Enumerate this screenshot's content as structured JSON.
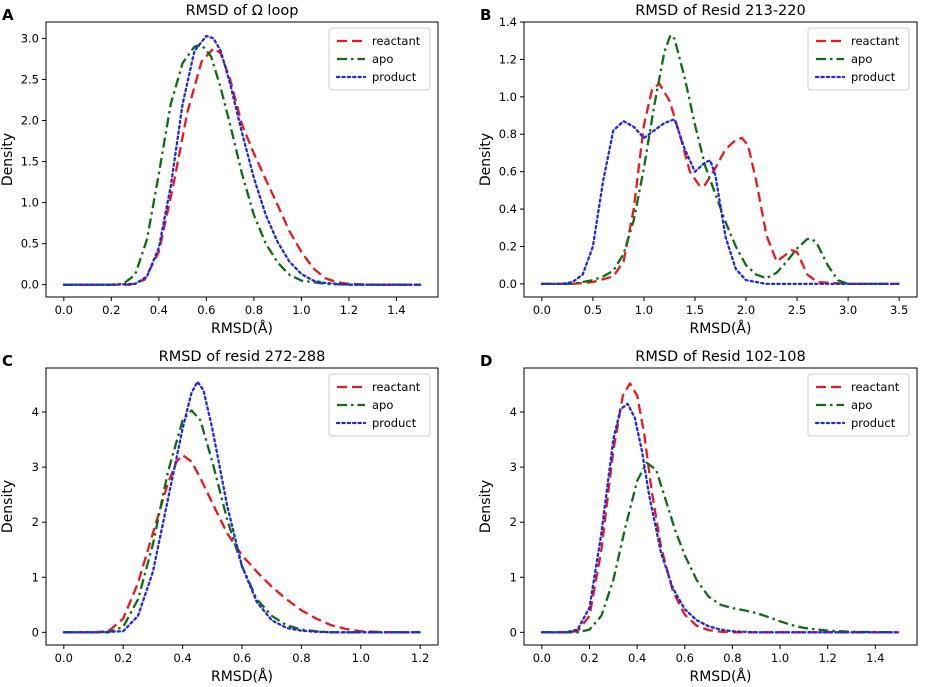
{
  "figure": {
    "colors": {
      "reactant": "#e8191f",
      "apo": "#0d6e12",
      "product": "#1f28e6"
    }
  },
  "chart_data": [
    {
      "panel": "A",
      "type": "line",
      "title": "RMSD of Ω loop",
      "xlabel": "RMSD(Å)",
      "ylabel": "Density",
      "xlim": [
        -0.075,
        1.575
      ],
      "ylim": [
        -0.15,
        3.2
      ],
      "xticks": [
        0.0,
        0.2,
        0.4,
        0.6,
        0.8,
        1.0,
        1.2,
        1.4
      ],
      "xtick_labels": [
        "0.0",
        "0.2",
        "0.4",
        "0.6",
        "0.8",
        "1.0",
        "1.2",
        "1.4"
      ],
      "yticks": [
        0.0,
        0.5,
        1.0,
        1.5,
        2.0,
        2.5,
        3.0
      ],
      "ytick_labels": [
        "0.0",
        "0.5",
        "1.0",
        "1.5",
        "2.0",
        "2.5",
        "3.0"
      ],
      "legend": {
        "position": "top-right",
        "entries": [
          "reactant",
          "apo",
          "product"
        ]
      },
      "series": [
        {
          "name": "reactant",
          "style": "dashed",
          "x": [
            0.0,
            0.1,
            0.2,
            0.28,
            0.34,
            0.4,
            0.46,
            0.52,
            0.58,
            0.63,
            0.66,
            0.7,
            0.75,
            0.8,
            0.85,
            0.9,
            0.95,
            1.0,
            1.05,
            1.1,
            1.15,
            1.2,
            1.3,
            1.5
          ],
          "y": [
            0,
            0,
            0,
            0,
            0.06,
            0.4,
            1.2,
            2.1,
            2.72,
            2.88,
            2.82,
            2.5,
            1.95,
            1.6,
            1.28,
            0.97,
            0.65,
            0.4,
            0.2,
            0.08,
            0.03,
            0.01,
            0,
            0
          ]
        },
        {
          "name": "apo",
          "style": "dashdot",
          "x": [
            0.0,
            0.1,
            0.2,
            0.25,
            0.3,
            0.35,
            0.4,
            0.45,
            0.5,
            0.55,
            0.58,
            0.62,
            0.66,
            0.7,
            0.75,
            0.8,
            0.85,
            0.9,
            0.95,
            1.0,
            1.1,
            1.2,
            1.5
          ],
          "y": [
            0,
            0,
            0,
            0.01,
            0.12,
            0.55,
            1.35,
            2.2,
            2.7,
            2.9,
            2.92,
            2.78,
            2.4,
            1.95,
            1.35,
            0.85,
            0.5,
            0.27,
            0.12,
            0.05,
            0.01,
            0,
            0
          ]
        },
        {
          "name": "product",
          "style": "dotted",
          "x": [
            0.0,
            0.1,
            0.2,
            0.3,
            0.35,
            0.4,
            0.45,
            0.5,
            0.55,
            0.6,
            0.63,
            0.66,
            0.7,
            0.75,
            0.8,
            0.85,
            0.9,
            0.95,
            1.0,
            1.05,
            1.1,
            1.2,
            1.5
          ],
          "y": [
            0,
            0,
            0,
            0.01,
            0.1,
            0.45,
            1.2,
            2.2,
            2.85,
            3.03,
            3.0,
            2.85,
            2.45,
            1.85,
            1.3,
            0.85,
            0.52,
            0.28,
            0.13,
            0.05,
            0.02,
            0,
            0
          ]
        }
      ]
    },
    {
      "panel": "B",
      "type": "line",
      "title": "RMSD of Resid 213-220",
      "xlabel": "RMSD(Å)",
      "ylabel": "Density",
      "xlim": [
        -0.175,
        3.675
      ],
      "ylim": [
        -0.07,
        1.4
      ],
      "xticks": [
        0.0,
        0.5,
        1.0,
        1.5,
        2.0,
        2.5,
        3.0,
        3.5
      ],
      "xtick_labels": [
        "0.0",
        "0.5",
        "1.0",
        "1.5",
        "2.0",
        "2.5",
        "3.0",
        "3.5"
      ],
      "yticks": [
        0.0,
        0.2,
        0.4,
        0.6,
        0.8,
        1.0,
        1.2,
        1.4
      ],
      "ytick_labels": [
        "0.0",
        "0.2",
        "0.4",
        "0.6",
        "0.8",
        "1.0",
        "1.2",
        "1.4"
      ],
      "legend": {
        "position": "top-right",
        "entries": [
          "reactant",
          "apo",
          "product"
        ]
      },
      "series": [
        {
          "name": "reactant",
          "style": "dashed",
          "x": [
            0.0,
            0.3,
            0.5,
            0.7,
            0.8,
            0.9,
            1.0,
            1.08,
            1.15,
            1.25,
            1.35,
            1.45,
            1.55,
            1.6,
            1.7,
            1.8,
            1.9,
            1.96,
            2.02,
            2.1,
            2.2,
            2.3,
            2.4,
            2.45,
            2.5,
            2.6,
            2.7,
            3.0,
            3.5
          ],
          "y": [
            0,
            0,
            0.01,
            0.04,
            0.12,
            0.4,
            0.85,
            1.04,
            1.07,
            0.98,
            0.8,
            0.6,
            0.52,
            0.53,
            0.62,
            0.72,
            0.77,
            0.78,
            0.74,
            0.55,
            0.26,
            0.12,
            0.16,
            0.18,
            0.17,
            0.05,
            0.01,
            0,
            0
          ]
        },
        {
          "name": "apo",
          "style": "dashdot",
          "x": [
            0.0,
            0.3,
            0.5,
            0.6,
            0.7,
            0.8,
            0.9,
            1.0,
            1.1,
            1.2,
            1.26,
            1.3,
            1.4,
            1.5,
            1.6,
            1.7,
            1.8,
            1.9,
            2.0,
            2.1,
            2.2,
            2.3,
            2.4,
            2.5,
            2.6,
            2.65,
            2.7,
            2.8,
            2.9,
            3.0,
            3.5
          ],
          "y": [
            0,
            0,
            0.02,
            0.04,
            0.07,
            0.16,
            0.34,
            0.62,
            0.95,
            1.24,
            1.33,
            1.31,
            1.1,
            0.85,
            0.63,
            0.48,
            0.33,
            0.2,
            0.1,
            0.05,
            0.03,
            0.06,
            0.12,
            0.19,
            0.24,
            0.24,
            0.21,
            0.1,
            0.02,
            0,
            0
          ]
        },
        {
          "name": "product",
          "style": "dotted",
          "x": [
            0.0,
            0.2,
            0.3,
            0.4,
            0.5,
            0.6,
            0.7,
            0.8,
            0.9,
            1.0,
            1.1,
            1.2,
            1.3,
            1.4,
            1.5,
            1.6,
            1.65,
            1.7,
            1.8,
            1.9,
            2.0,
            2.1,
            2.2,
            2.5,
            3.5
          ],
          "y": [
            0,
            0,
            0.01,
            0.05,
            0.2,
            0.55,
            0.82,
            0.87,
            0.84,
            0.78,
            0.82,
            0.86,
            0.88,
            0.72,
            0.6,
            0.65,
            0.66,
            0.58,
            0.25,
            0.08,
            0.02,
            0.01,
            0,
            0,
            0
          ]
        }
      ]
    },
    {
      "panel": "C",
      "type": "line",
      "title": "RMSD of resid 272-288",
      "xlabel": "RMSD(Å)",
      "ylabel": "Density",
      "xlim": [
        -0.06,
        1.26
      ],
      "ylim": [
        -0.23,
        4.8
      ],
      "xticks": [
        0.0,
        0.2,
        0.4,
        0.6,
        0.8,
        1.0,
        1.2
      ],
      "xtick_labels": [
        "0.0",
        "0.2",
        "0.4",
        "0.6",
        "0.8",
        "1.0",
        "1.2"
      ],
      "yticks": [
        0,
        1,
        2,
        3,
        4
      ],
      "ytick_labels": [
        "0",
        "1",
        "2",
        "3",
        "4"
      ],
      "legend": {
        "position": "top-right",
        "entries": [
          "reactant",
          "apo",
          "product"
        ]
      },
      "series": [
        {
          "name": "reactant",
          "style": "dashed",
          "x": [
            0.0,
            0.1,
            0.15,
            0.2,
            0.25,
            0.3,
            0.35,
            0.38,
            0.4,
            0.43,
            0.46,
            0.5,
            0.55,
            0.6,
            0.65,
            0.7,
            0.75,
            0.8,
            0.85,
            0.9,
            0.95,
            1.0,
            1.1,
            1.2
          ],
          "y": [
            0,
            0,
            0.02,
            0.25,
            0.9,
            1.8,
            2.7,
            3.1,
            3.22,
            3.1,
            2.8,
            2.35,
            1.8,
            1.4,
            1.1,
            0.83,
            0.6,
            0.4,
            0.25,
            0.13,
            0.06,
            0.02,
            0,
            0
          ]
        },
        {
          "name": "apo",
          "style": "dashdot",
          "x": [
            0.0,
            0.1,
            0.15,
            0.2,
            0.25,
            0.3,
            0.35,
            0.4,
            0.43,
            0.46,
            0.5,
            0.55,
            0.6,
            0.65,
            0.7,
            0.75,
            0.8,
            0.85,
            0.9,
            1.0,
            1.2
          ],
          "y": [
            0,
            0,
            0,
            0.1,
            0.6,
            1.6,
            2.9,
            3.85,
            4.03,
            3.85,
            3.1,
            2.05,
            1.2,
            0.6,
            0.3,
            0.13,
            0.05,
            0.02,
            0,
            0,
            0
          ]
        },
        {
          "name": "product",
          "style": "dotted",
          "x": [
            0.0,
            0.1,
            0.2,
            0.25,
            0.3,
            0.35,
            0.4,
            0.43,
            0.45,
            0.47,
            0.5,
            0.55,
            0.6,
            0.65,
            0.7,
            0.75,
            0.8,
            0.85,
            0.9,
            1.2
          ],
          "y": [
            0,
            0,
            0.02,
            0.3,
            1.1,
            2.4,
            3.7,
            4.35,
            4.55,
            4.4,
            3.7,
            2.3,
            1.2,
            0.55,
            0.22,
            0.08,
            0.03,
            0.01,
            0,
            0
          ]
        }
      ]
    },
    {
      "panel": "D",
      "type": "line",
      "title": "RMSD of Resid 102-108",
      "xlabel": "RMSD(Å)",
      "ylabel": "Density",
      "xlim": [
        -0.075,
        1.575
      ],
      "ylim": [
        -0.23,
        4.8
      ],
      "xticks": [
        0.0,
        0.2,
        0.4,
        0.6,
        0.8,
        1.0,
        1.2,
        1.4
      ],
      "xtick_labels": [
        "0.0",
        "0.2",
        "0.4",
        "0.6",
        "0.8",
        "1.0",
        "1.2",
        "1.4"
      ],
      "yticks": [
        0,
        1,
        2,
        3,
        4
      ],
      "ytick_labels": [
        "0",
        "1",
        "2",
        "3",
        "4"
      ],
      "legend": {
        "position": "top-right",
        "entries": [
          "reactant",
          "apo",
          "product"
        ]
      },
      "series": [
        {
          "name": "reactant",
          "style": "dashed",
          "x": [
            0.0,
            0.1,
            0.15,
            0.2,
            0.25,
            0.3,
            0.34,
            0.37,
            0.4,
            0.43,
            0.46,
            0.5,
            0.55,
            0.6,
            0.65,
            0.7,
            0.75,
            0.8,
            0.9,
            1.0,
            1.5
          ],
          "y": [
            0,
            0,
            0.02,
            0.3,
            1.5,
            3.3,
            4.3,
            4.52,
            4.3,
            3.6,
            2.6,
            1.55,
            0.75,
            0.32,
            0.12,
            0.04,
            0.01,
            0,
            0,
            0,
            0
          ]
        },
        {
          "name": "apo",
          "style": "dashdot",
          "x": [
            0.0,
            0.15,
            0.2,
            0.25,
            0.3,
            0.35,
            0.4,
            0.44,
            0.48,
            0.52,
            0.56,
            0.6,
            0.65,
            0.7,
            0.75,
            0.8,
            0.85,
            0.9,
            0.95,
            1.0,
            1.05,
            1.1,
            1.2,
            1.3,
            1.5
          ],
          "y": [
            0,
            0,
            0.05,
            0.3,
            0.95,
            1.9,
            2.75,
            3.08,
            2.95,
            2.4,
            1.85,
            1.4,
            0.95,
            0.65,
            0.5,
            0.44,
            0.4,
            0.35,
            0.28,
            0.2,
            0.13,
            0.08,
            0.03,
            0.01,
            0
          ]
        },
        {
          "name": "product",
          "style": "dotted",
          "x": [
            0.0,
            0.1,
            0.15,
            0.2,
            0.25,
            0.3,
            0.33,
            0.36,
            0.39,
            0.42,
            0.45,
            0.5,
            0.55,
            0.6,
            0.65,
            0.7,
            0.75,
            0.8,
            0.9,
            1.0,
            1.5
          ],
          "y": [
            0,
            0,
            0.05,
            0.45,
            1.8,
            3.5,
            4.05,
            4.15,
            3.9,
            3.3,
            2.5,
            1.45,
            0.8,
            0.42,
            0.22,
            0.11,
            0.05,
            0.02,
            0,
            0,
            0
          ]
        }
      ]
    }
  ]
}
